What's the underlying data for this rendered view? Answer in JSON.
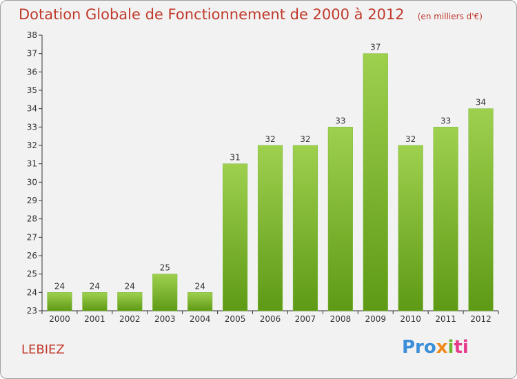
{
  "header": {
    "title": "Dotation Globale de Fonctionnement de 2000 à 2012",
    "subtitle": "(en milliers d'€)"
  },
  "footer": {
    "commune": "LEBIEZ",
    "brand": [
      "Pro",
      "x",
      "i",
      "ti"
    ]
  },
  "colors": {
    "bar_top": "#9ed04e",
    "bar_bottom": "#5e9a15",
    "title": "#c0392b",
    "axis": "#333333"
  },
  "chart_data": {
    "type": "bar",
    "title": "Dotation Globale de Fonctionnement de 2000 à 2012",
    "subtitle": "(en milliers d'€)",
    "xlabel": "",
    "ylabel": "",
    "categories": [
      "2000",
      "2001",
      "2002",
      "2003",
      "2004",
      "2005",
      "2006",
      "2007",
      "2008",
      "2009",
      "2010",
      "2011",
      "2012"
    ],
    "values": [
      24,
      24,
      24,
      25,
      24,
      31,
      32,
      32,
      33,
      37,
      32,
      33,
      34
    ],
    "ylim": [
      23,
      38
    ],
    "yticks": [
      23,
      24,
      25,
      26,
      27,
      28,
      29,
      30,
      31,
      32,
      33,
      34,
      35,
      36,
      37,
      38
    ],
    "grid": false,
    "legend": "none"
  }
}
